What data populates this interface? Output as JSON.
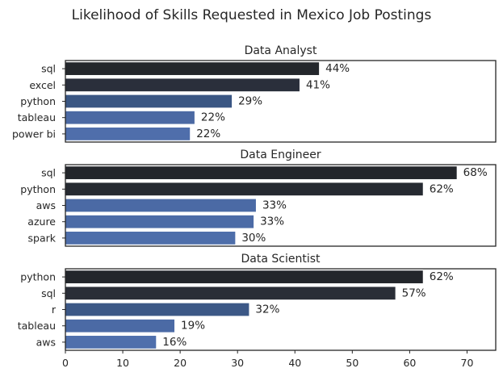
{
  "title": "Likelihood of Skills Requested in Mexico Job Postings",
  "chart_data": {
    "type": "bar",
    "orientation": "horizontal",
    "suptitle": "Likelihood of Skills Requested in Mexico Job Postings",
    "xlim": [
      0,
      75
    ],
    "xticks": [
      0,
      10,
      20,
      30,
      40,
      50,
      60,
      70
    ],
    "xlabel": "",
    "ylabel": "",
    "grid": false,
    "value_suffix": "%",
    "panels": [
      {
        "title": "Data Analyst",
        "categories": [
          "sql",
          "excel",
          "python",
          "tableau",
          "power bi"
        ],
        "values": [
          44,
          41,
          29,
          22,
          22
        ],
        "exact": [
          44.2,
          40.8,
          29.0,
          22.5,
          21.7
        ],
        "labels": [
          "44%",
          "41%",
          "29%",
          "22%",
          "22%"
        ],
        "colors": [
          "#24272c",
          "#2a2f3b",
          "#3a5683",
          "#4b69a3",
          "#4f6eab"
        ]
      },
      {
        "title": "Data Engineer",
        "categories": [
          "sql",
          "python",
          "aws",
          "azure",
          "spark"
        ],
        "values": [
          68,
          62,
          33,
          33,
          30
        ],
        "exact": [
          68.2,
          62.3,
          33.2,
          32.8,
          29.6
        ],
        "labels": [
          "68%",
          "62%",
          "33%",
          "33%",
          "30%"
        ],
        "colors": [
          "#23262b",
          "#262a31",
          "#4b6aa5",
          "#4c6ba6",
          "#4e6eaa"
        ]
      },
      {
        "title": "Data Scientist",
        "categories": [
          "python",
          "sql",
          "r",
          "tableau",
          "aws"
        ],
        "values": [
          62,
          57,
          32,
          19,
          16
        ],
        "exact": [
          62.3,
          57.5,
          32.0,
          19.0,
          15.8
        ],
        "labels": [
          "62%",
          "57%",
          "32%",
          "19%",
          "16%"
        ],
        "colors": [
          "#23262b",
          "#2a2e37",
          "#3c5886",
          "#4b6aa5",
          "#4f6fac"
        ]
      }
    ]
  }
}
